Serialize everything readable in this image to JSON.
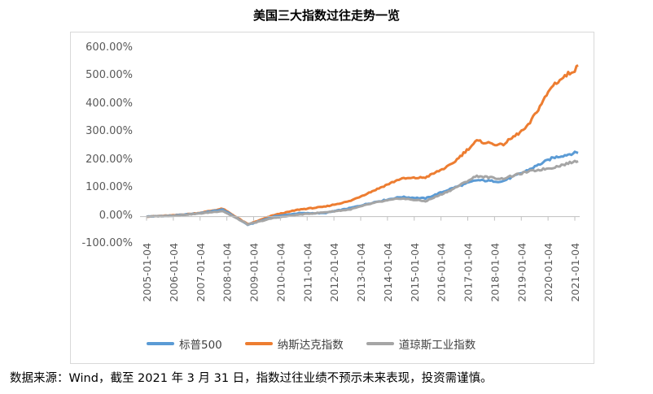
{
  "note": "数据来源：Wind，截至 2021 年 3 月 31 日，指数过往业绩不预示未来表现，投资需谨慎。",
  "chart_data": {
    "type": "line",
    "title": "美国三大指数过往走势一览",
    "x": [
      "2005-01-04",
      "2006-01-04",
      "2007-01-04",
      "2008-01-04",
      "2009-01-04",
      "2010-01-04",
      "2011-01-04",
      "2012-01-04",
      "2013-01-04",
      "2014-01-04",
      "2015-01-04",
      "2016-01-04",
      "2017-01-04",
      "2018-01-04",
      "2019-01-04",
      "2020-01-04",
      "2021-01-04"
    ],
    "ylim": [
      -100,
      600
    ],
    "yticks": [
      "600.00%",
      "500.00%",
      "400.00%",
      "300.00%",
      "200.00%",
      "100.00%",
      "0.00%",
      "-100.00%"
    ],
    "yunit": "%",
    "series": [
      {
        "name": "标普500",
        "color": "#5b9bd5",
        "values": [
          0,
          3,
          11,
          25,
          -30,
          0,
          12,
          12,
          30,
          52,
          70,
          65,
          100,
          130,
          125,
          165,
          210
        ],
        "end_value": 230
      },
      {
        "name": "纳斯达克指数",
        "color": "#ed7d31",
        "values": [
          0,
          4,
          12,
          28,
          -28,
          5,
          25,
          35,
          55,
          95,
          135,
          140,
          185,
          270,
          255,
          320,
          470
        ],
        "end_value": 535
      },
      {
        "name": "道琼斯工业指数",
        "color": "#a5a5a5",
        "values": [
          0,
          3,
          10,
          20,
          -28,
          -5,
          7,
          15,
          25,
          50,
          65,
          55,
          95,
          145,
          135,
          160,
          175
        ],
        "end_value": 200
      }
    ]
  }
}
